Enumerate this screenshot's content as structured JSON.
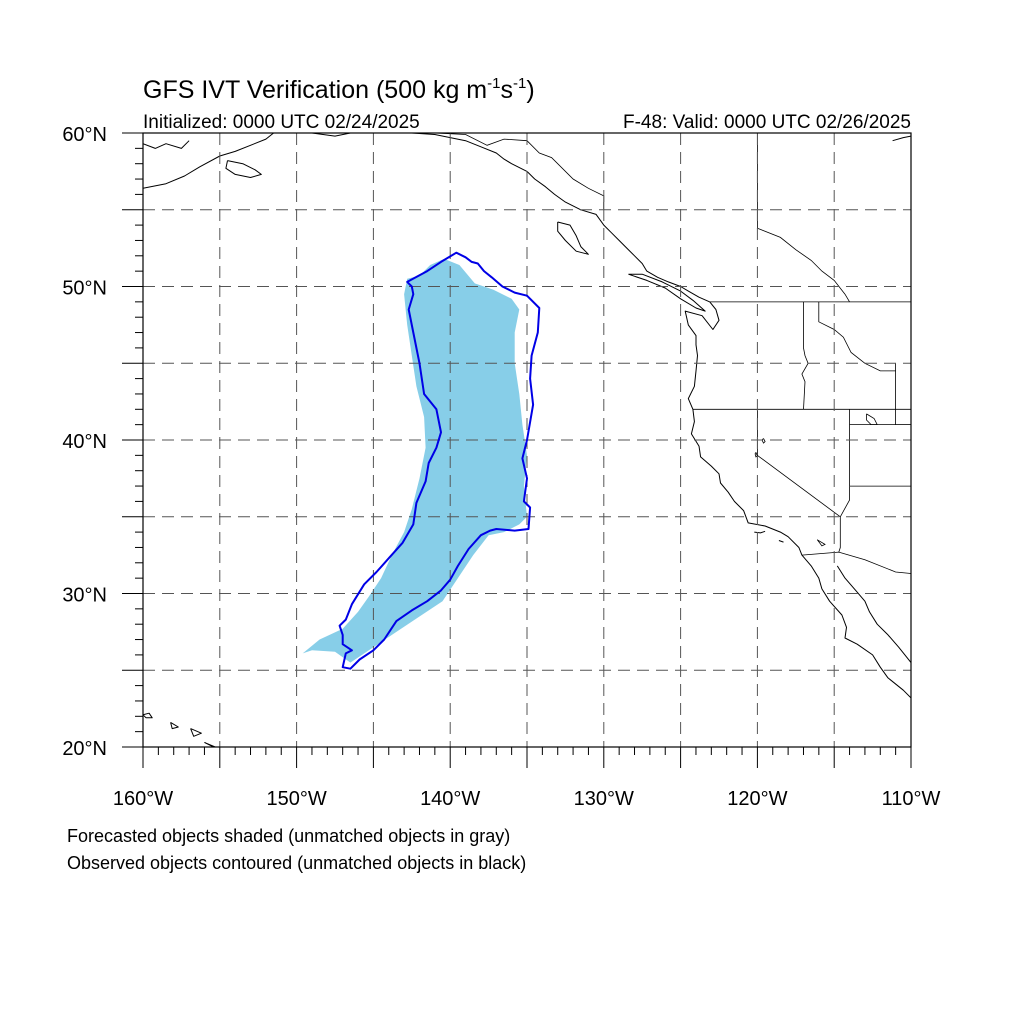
{
  "title": {
    "main": "GFS IVT Verification (500 kg m",
    "sup1": "-1",
    "mid": "s",
    "sup2": "-1",
    "end": ")"
  },
  "subtitle": {
    "left": "Initialized: 0000 UTC 02/24/2025",
    "right": "F-48: Valid: 0000 UTC 02/26/2025"
  },
  "axes": {
    "lon_range": [
      -160,
      -110
    ],
    "lat_range": [
      20,
      60
    ],
    "lon_ticks": [
      {
        "value": -160,
        "label": "160°W"
      },
      {
        "value": -150,
        "label": "150°W"
      },
      {
        "value": -140,
        "label": "140°W"
      },
      {
        "value": -130,
        "label": "130°W"
      },
      {
        "value": -120,
        "label": "120°W"
      },
      {
        "value": -110,
        "label": "110°W"
      }
    ],
    "lat_ticks": [
      {
        "value": 60,
        "label": "60°N"
      },
      {
        "value": 50,
        "label": "50°N"
      },
      {
        "value": 40,
        "label": "40°N"
      },
      {
        "value": 30,
        "label": "30°N"
      },
      {
        "value": 20,
        "label": "20°N"
      }
    ],
    "grid": "dashed, every 5 degrees"
  },
  "legend_notes": [
    "Forecasted objects shaded (unmatched objects in gray)",
    "Observed objects contoured (unmatched objects in black)"
  ],
  "colors": {
    "forecast_fill": "#87cee8",
    "observed_contour": "#0000e6",
    "coastline": "#000000",
    "grid": "#555555"
  },
  "forecast_object": [
    [
      -142.0,
      50.7
    ],
    [
      -141.3,
      51.4
    ],
    [
      -140.4,
      51.8
    ],
    [
      -139.4,
      51.4
    ],
    [
      -138.4,
      50.2
    ],
    [
      -137.2,
      49.8
    ],
    [
      -136.0,
      49.2
    ],
    [
      -135.5,
      48.5
    ],
    [
      -135.8,
      47.0
    ],
    [
      -135.8,
      45.0
    ],
    [
      -135.5,
      43.0
    ],
    [
      -135.3,
      41.0
    ],
    [
      -135.0,
      39.0
    ],
    [
      -135.2,
      37.0
    ],
    [
      -135.0,
      35.0
    ],
    [
      -135.5,
      34.5
    ],
    [
      -136.5,
      34.0
    ],
    [
      -137.5,
      33.8
    ],
    [
      -138.5,
      32.5
    ],
    [
      -139.5,
      31.0
    ],
    [
      -140.5,
      29.5
    ],
    [
      -142.0,
      28.5
    ],
    [
      -143.5,
      27.5
    ],
    [
      -145.0,
      26.5
    ],
    [
      -146.5,
      25.5
    ],
    [
      -147.5,
      26.2
    ],
    [
      -149.0,
      26.3
    ],
    [
      -149.6,
      26.1
    ],
    [
      -148.5,
      27.0
    ],
    [
      -147.0,
      27.7
    ],
    [
      -146.0,
      28.8
    ],
    [
      -145.3,
      29.8
    ],
    [
      -144.5,
      31.0
    ],
    [
      -143.8,
      32.5
    ],
    [
      -143.0,
      34.0
    ],
    [
      -142.5,
      35.5
    ],
    [
      -142.0,
      37.5
    ],
    [
      -141.6,
      39.5
    ],
    [
      -141.7,
      41.5
    ],
    [
      -142.2,
      43.5
    ],
    [
      -142.5,
      45.5
    ],
    [
      -142.8,
      47.5
    ],
    [
      -143.0,
      49.5
    ],
    [
      -142.8,
      50.5
    ]
  ],
  "observed_object": [
    [
      -142.8,
      50.3
    ],
    [
      -141.5,
      51.0
    ],
    [
      -140.6,
      51.6
    ],
    [
      -139.6,
      52.2
    ],
    [
      -139.0,
      51.9
    ],
    [
      -138.6,
      51.6
    ],
    [
      -138.2,
      51.5
    ],
    [
      -137.8,
      51.0
    ],
    [
      -137.3,
      50.6
    ],
    [
      -136.6,
      50.0
    ],
    [
      -135.8,
      49.6
    ],
    [
      -135.0,
      49.4
    ],
    [
      -134.2,
      48.6
    ],
    [
      -134.3,
      47.0
    ],
    [
      -134.7,
      45.5
    ],
    [
      -134.8,
      44.0
    ],
    [
      -134.6,
      42.3
    ],
    [
      -135.0,
      40.0
    ],
    [
      -135.3,
      38.8
    ],
    [
      -135.0,
      37.5
    ],
    [
      -135.2,
      36.0
    ],
    [
      -134.8,
      35.6
    ],
    [
      -134.9,
      34.2
    ],
    [
      -135.8,
      34.1
    ],
    [
      -137.0,
      34.2
    ],
    [
      -137.4,
      34.1
    ],
    [
      -138.0,
      33.8
    ],
    [
      -138.8,
      32.9
    ],
    [
      -139.5,
      31.8
    ],
    [
      -140.0,
      30.9
    ],
    [
      -140.6,
      30.2
    ],
    [
      -141.5,
      29.5
    ],
    [
      -142.5,
      28.9
    ],
    [
      -143.5,
      28.2
    ],
    [
      -144.3,
      27.0
    ],
    [
      -145.0,
      26.3
    ],
    [
      -145.9,
      25.7
    ],
    [
      -146.5,
      25.1
    ],
    [
      -147.0,
      25.2
    ],
    [
      -146.8,
      26.1
    ],
    [
      -146.4,
      26.3
    ],
    [
      -147.0,
      26.7
    ],
    [
      -147.0,
      27.3
    ],
    [
      -147.2,
      27.9
    ],
    [
      -146.8,
      28.3
    ],
    [
      -146.4,
      29.3
    ],
    [
      -145.6,
      30.6
    ],
    [
      -144.8,
      31.4
    ],
    [
      -144.0,
      32.3
    ],
    [
      -143.1,
      33.3
    ],
    [
      -142.4,
      34.5
    ],
    [
      -142.2,
      35.9
    ],
    [
      -141.6,
      37.3
    ],
    [
      -141.4,
      38.5
    ],
    [
      -140.9,
      39.5
    ],
    [
      -140.6,
      40.5
    ],
    [
      -140.9,
      42.0
    ],
    [
      -141.7,
      43.0
    ],
    [
      -142.0,
      45.0
    ],
    [
      -142.4,
      47.0
    ],
    [
      -142.7,
      48.5
    ],
    [
      -142.4,
      49.5
    ],
    [
      -142.5,
      50.0
    ]
  ],
  "coastlines": [
    [
      [
        -160,
        56.4
      ],
      [
        -158.5,
        56.7
      ],
      [
        -157.3,
        57.2
      ],
      [
        -156.3,
        57.8
      ],
      [
        -155.0,
        58.5
      ],
      [
        -154.0,
        58.8
      ],
      [
        -153.0,
        59.2
      ],
      [
        -152.0,
        59.6
      ],
      [
        -151.5,
        60.0
      ]
    ],
    [
      [
        -160,
        59.3
      ],
      [
        -159.2,
        59.0
      ],
      [
        -158.5,
        59.3
      ],
      [
        -157.5,
        59.0
      ],
      [
        -157.0,
        59.5
      ]
    ],
    [
      [
        -154.5,
        58.2
      ],
      [
        -153.5,
        58.0
      ],
      [
        -152.7,
        57.6
      ],
      [
        -152.3,
        57.3
      ],
      [
        -153.0,
        57.1
      ],
      [
        -154.0,
        57.3
      ],
      [
        -154.6,
        57.7
      ],
      [
        -154.5,
        58.2
      ]
    ],
    [
      [
        -149.0,
        60.0
      ],
      [
        -147.5,
        59.8
      ],
      [
        -146.5,
        60.0
      ]
    ],
    [
      [
        -142.5,
        60.0
      ],
      [
        -141.0,
        59.9
      ],
      [
        -140.0,
        59.7
      ],
      [
        -139.0,
        59.5
      ],
      [
        -138.0,
        59.1
      ],
      [
        -137.0,
        58.7
      ],
      [
        -136.5,
        58.3
      ],
      [
        -136.0,
        58.0
      ],
      [
        -135.0,
        57.5
      ],
      [
        -134.5,
        57.0
      ],
      [
        -133.8,
        56.5
      ],
      [
        -133.2,
        56.0
      ],
      [
        -132.5,
        55.5
      ],
      [
        -131.5,
        55.0
      ],
      [
        -130.5,
        54.7
      ],
      [
        -130.0,
        54.0
      ],
      [
        -129.5,
        53.5
      ],
      [
        -129.0,
        53.0
      ],
      [
        -128.5,
        52.5
      ],
      [
        -128.0,
        52.0
      ],
      [
        -127.5,
        51.5
      ],
      [
        -127.2,
        51.0
      ],
      [
        -126.5,
        50.6
      ],
      [
        -125.8,
        50.3
      ],
      [
        -125.0,
        50.0
      ],
      [
        -124.5,
        49.7
      ],
      [
        -123.8,
        49.3
      ],
      [
        -123.1,
        49.0
      ],
      [
        -122.7,
        48.5
      ],
      [
        -122.5,
        47.8
      ],
      [
        -122.9,
        47.2
      ],
      [
        -123.6,
        48.1
      ],
      [
        -124.7,
        48.4
      ],
      [
        -124.5,
        47.5
      ],
      [
        -124.0,
        46.8
      ],
      [
        -124.0,
        46.2
      ],
      [
        -123.9,
        45.5
      ],
      [
        -124.0,
        44.5
      ],
      [
        -124.1,
        43.5
      ],
      [
        -124.5,
        42.7
      ],
      [
        -124.2,
        42.0
      ],
      [
        -124.1,
        41.2
      ],
      [
        -124.3,
        40.4
      ],
      [
        -123.8,
        39.6
      ],
      [
        -123.7,
        38.9
      ],
      [
        -123.0,
        38.3
      ],
      [
        -122.5,
        37.8
      ],
      [
        -122.4,
        37.2
      ],
      [
        -121.9,
        36.6
      ],
      [
        -121.5,
        36.0
      ],
      [
        -120.9,
        35.4
      ],
      [
        -120.6,
        34.6
      ],
      [
        -119.5,
        34.4
      ],
      [
        -118.5,
        34.0
      ],
      [
        -118.0,
        33.7
      ],
      [
        -117.3,
        33.0
      ],
      [
        -117.1,
        32.5
      ],
      [
        -116.5,
        31.8
      ],
      [
        -116.0,
        31.0
      ],
      [
        -115.8,
        30.3
      ],
      [
        -115.3,
        29.5
      ],
      [
        -114.5,
        28.6
      ],
      [
        -114.2,
        27.8
      ],
      [
        -114.3,
        27.1
      ],
      [
        -113.5,
        26.7
      ],
      [
        -112.5,
        26.0
      ],
      [
        -112.0,
        25.2
      ],
      [
        -111.5,
        24.5
      ],
      [
        -110.5,
        23.7
      ],
      [
        -110.0,
        23.2
      ]
    ],
    [
      [
        -114.8,
        31.8
      ],
      [
        -114.3,
        31.0
      ],
      [
        -113.6,
        30.2
      ],
      [
        -113.0,
        29.5
      ],
      [
        -112.7,
        28.8
      ],
      [
        -112.2,
        28.0
      ],
      [
        -111.5,
        27.3
      ],
      [
        -110.8,
        26.5
      ],
      [
        -110.0,
        25.5
      ]
    ],
    [
      [
        -133.0,
        54.2
      ],
      [
        -132.2,
        54.0
      ],
      [
        -131.8,
        53.3
      ],
      [
        -131.5,
        52.6
      ],
      [
        -131.0,
        52.1
      ],
      [
        -131.8,
        52.3
      ],
      [
        -132.5,
        53.0
      ],
      [
        -133.0,
        53.6
      ],
      [
        -133.0,
        54.2
      ]
    ],
    [
      [
        -128.4,
        50.8
      ],
      [
        -127.2,
        50.4
      ],
      [
        -126.0,
        49.9
      ],
      [
        -125.0,
        49.2
      ],
      [
        -124.0,
        48.6
      ],
      [
        -123.4,
        48.4
      ],
      [
        -124.2,
        49.1
      ],
      [
        -125.0,
        49.7
      ],
      [
        -126.2,
        50.3
      ],
      [
        -127.5,
        50.8
      ],
      [
        -128.4,
        50.8
      ]
    ],
    [
      [
        -111.2,
        59.5
      ],
      [
        -110.5,
        59.7
      ],
      [
        -110.0,
        59.8
      ]
    ],
    [
      [
        -120.2,
        34.0
      ],
      [
        -119.8,
        33.95
      ],
      [
        -119.5,
        34.05
      ]
    ],
    [
      [
        -118.6,
        33.45
      ],
      [
        -118.3,
        33.35
      ]
    ],
    [
      [
        -160,
        22.1
      ],
      [
        -159.6,
        22.2
      ],
      [
        -159.4,
        21.9
      ],
      [
        -159.8,
        21.9
      ],
      [
        -160,
        22.1
      ]
    ],
    [
      [
        -158.2,
        21.6
      ],
      [
        -157.7,
        21.3
      ],
      [
        -158.1,
        21.2
      ],
      [
        -158.2,
        21.6
      ]
    ],
    [
      [
        -156.9,
        21.2
      ],
      [
        -156.2,
        20.9
      ],
      [
        -156.7,
        20.7
      ],
      [
        -156.9,
        21.2
      ]
    ],
    [
      [
        -156.0,
        20.3
      ],
      [
        -155.0,
        19.8
      ],
      [
        -155.3,
        20.0
      ],
      [
        -156.0,
        20.3
      ]
    ]
  ],
  "borders": [
    [
      [
        -123.1,
        49.0
      ],
      [
        -110,
        49.0
      ]
    ],
    [
      [
        -124.2,
        42.0
      ],
      [
        -110,
        42.0
      ]
    ],
    [
      [
        -120.0,
        42.0
      ],
      [
        -120.0,
        39.0
      ],
      [
        -114.6,
        35.0
      ]
    ],
    [
      [
        -117.1,
        32.5
      ],
      [
        -114.7,
        32.7
      ],
      [
        -113.0,
        32.2
      ],
      [
        -111.0,
        31.4
      ],
      [
        -110,
        31.3
      ]
    ],
    [
      [
        -117.0,
        49.0
      ],
      [
        -117.0,
        46.0
      ],
      [
        -116.9,
        45.5
      ],
      [
        -116.7,
        45.0
      ],
      [
        -117.1,
        44.3
      ],
      [
        -116.9,
        43.8
      ],
      [
        -117.0,
        42.0
      ]
    ],
    [
      [
        -116.0,
        49.0
      ],
      [
        -116.0,
        47.7
      ],
      [
        -115.0,
        47.2
      ],
      [
        -114.4,
        46.7
      ],
      [
        -113.9,
        45.7
      ],
      [
        -113.0,
        45.0
      ],
      [
        -112.0,
        44.5
      ],
      [
        -111.0,
        44.5
      ]
    ],
    [
      [
        -111.0,
        45.0
      ],
      [
        -111.0,
        41.0
      ],
      [
        -114.0,
        41.0
      ],
      [
        -114.0,
        37.0
      ]
    ],
    [
      [
        -114.0,
        42.0
      ],
      [
        -114.0,
        41.0
      ]
    ],
    [
      [
        -114.0,
        37.0
      ],
      [
        -114.0,
        36.1
      ],
      [
        -114.6,
        35.0
      ],
      [
        -114.6,
        33.0
      ],
      [
        -114.7,
        32.7
      ]
    ],
    [
      [
        -114.0,
        37.0
      ],
      [
        -110,
        37.0
      ]
    ],
    [
      [
        -111.0,
        41.0
      ],
      [
        -110,
        41.0
      ]
    ],
    [
      [
        -141.0,
        60.0
      ],
      [
        -139.0,
        59.9
      ],
      [
        -137.6,
        59.2
      ],
      [
        -136.5,
        59.6
      ],
      [
        -135.0,
        59.5
      ],
      [
        -134.2,
        58.7
      ],
      [
        -133.4,
        58.4
      ],
      [
        -132.0,
        57.0
      ],
      [
        -131.0,
        56.4
      ],
      [
        -130.0,
        55.9
      ],
      [
        -130.0,
        55.0
      ]
    ],
    [
      [
        -120.0,
        60.0
      ],
      [
        -120.0,
        53.8
      ],
      [
        -118.5,
        53.2
      ],
      [
        -117.5,
        52.4
      ],
      [
        -116.5,
        51.7
      ],
      [
        -115.8,
        51.0
      ],
      [
        -115.0,
        50.4
      ],
      [
        -114.3,
        49.5
      ],
      [
        -114.0,
        49.0
      ]
    ]
  ],
  "lakes": [
    [
      [
        -112.9,
        41.7
      ],
      [
        -112.4,
        41.4
      ],
      [
        -112.2,
        41.0
      ],
      [
        -112.6,
        41.0
      ],
      [
        -112.9,
        41.3
      ],
      [
        -112.9,
        41.7
      ]
    ],
    [
      [
        -119.6,
        40.1
      ],
      [
        -119.5,
        39.9
      ],
      [
        -119.6,
        39.8
      ],
      [
        -119.7,
        40.0
      ],
      [
        -119.6,
        40.1
      ]
    ],
    [
      [
        -120.1,
        39.2
      ],
      [
        -120.0,
        38.95
      ],
      [
        -120.1,
        38.9
      ],
      [
        -120.15,
        39.1
      ],
      [
        -120.1,
        39.2
      ]
    ],
    [
      [
        -116.1,
        33.5
      ],
      [
        -115.6,
        33.2
      ],
      [
        -115.8,
        33.1
      ],
      [
        -116.1,
        33.5
      ]
    ]
  ]
}
